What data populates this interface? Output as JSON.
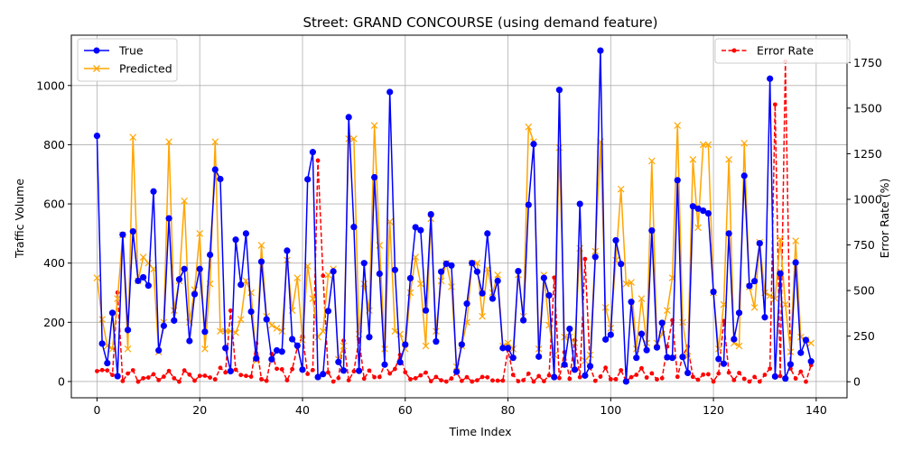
{
  "chart_data": {
    "type": "line",
    "title": "Street: GRAND CONCOURSE (using demand feature)",
    "xlabel": "Time Index",
    "ylabel": "Traffic Volume",
    "y2label": "Error Rate (%)",
    "xlim": [
      -5,
      146
    ],
    "ylim": [
      -55,
      1170
    ],
    "y2lim": [
      -88,
      1900
    ],
    "xticks": [
      0,
      20,
      40,
      60,
      80,
      100,
      120,
      140
    ],
    "yticks": [
      0,
      200,
      400,
      600,
      800,
      1000
    ],
    "y2ticks": [
      0,
      250,
      500,
      750,
      1000,
      1250,
      1500,
      1750
    ],
    "grid": true,
    "legend_left": "upper-left",
    "legend_right": "upper-right",
    "colors": {
      "true": "#0000ff",
      "predicted": "#ffa500",
      "error": "#ff0000"
    },
    "series": [
      {
        "name": "True",
        "axis": "left",
        "values": [
          830,
          128,
          62,
          232,
          18,
          496,
          174,
          507,
          340,
          352,
          324,
          642,
          105,
          188,
          551,
          206,
          345,
          380,
          137,
          295,
          380,
          168,
          428,
          716,
          684,
          113,
          35,
          479,
          327,
          500,
          236,
          78,
          405,
          210,
          75,
          105,
          101,
          442,
          143,
          121,
          40,
          683,
          775,
          15,
          25,
          238,
          372,
          66,
          37,
          893,
          522,
          36,
          400,
          150,
          690,
          364,
          57,
          978,
          377,
          65,
          125,
          349,
          521,
          511,
          240,
          565,
          135,
          371,
          398,
          392,
          33,
          125,
          263,
          400,
          371,
          298,
          500,
          280,
          340,
          113,
          113,
          80,
          373,
          207,
          597,
          802,
          84,
          350,
          291,
          15,
          985,
          57,
          178,
          40,
          600,
          20,
          52,
          421,
          1118,
          142,
          158,
          477,
          397,
          0,
          269,
          80,
          161,
          106,
          510,
          115,
          198,
          82,
          80,
          680,
          83,
          29,
          592,
          584,
          577,
          568,
          303,
          76,
          60,
          500,
          143,
          232,
          695,
          323,
          339,
          467,
          217,
          1023,
          17,
          365,
          10,
          58,
          402,
          97,
          140,
          68
        ]
      },
      {
        "name": "Predicted",
        "axis": "left",
        "values": [
          350,
          210,
          120,
          110,
          280,
          495,
          110,
          825,
          340,
          420,
          400,
          380,
          100,
          200,
          810,
          240,
          340,
          610,
          200,
          310,
          500,
          110,
          330,
          810,
          170,
          170,
          170,
          165,
          210,
          340,
          300,
          70,
          460,
          220,
          190,
          180,
          170,
          410,
          240,
          350,
          140,
          390,
          280,
          150,
          170,
          360,
          380,
          75,
          120,
          820,
          820,
          160,
          330,
          240,
          865,
          460,
          110,
          540,
          170,
          160,
          110,
          300,
          420,
          330,
          120,
          550,
          170,
          340,
          400,
          320,
          50,
          120,
          200,
          400,
          400,
          220,
          380,
          300,
          360,
          120,
          130,
          110,
          360,
          220,
          860,
          810,
          110,
          360,
          190,
          90,
          790,
          150,
          150,
          130,
          450,
          70,
          90,
          440,
          810,
          250,
          180,
          410,
          650,
          330,
          335,
          110,
          280,
          130,
          745,
          130,
          160,
          240,
          350,
          865,
          200,
          85,
          750,
          520,
          800,
          800,
          300,
          110,
          260,
          750,
          130,
          120,
          805,
          320,
          250,
          470,
          300,
          290,
          280,
          480,
          260,
          100,
          475,
          150,
          140,
          130
        ]
      },
      {
        "name": "Error Rate",
        "axis": "right",
        "values": [
          58,
          64,
          62,
          37,
          489,
          4,
          45,
          63,
          0,
          19,
          23,
          41,
          9,
          28,
          59,
          19,
          0,
          62,
          39,
          6,
          32,
          33,
          23,
          13,
          76,
          51,
          390,
          66,
          37,
          32,
          28,
          210,
          14,
          5,
          153,
          71,
          68,
          8,
          69,
          189,
          250,
          43,
          64,
          1213,
          581,
          51,
          1,
          20,
          225,
          8,
          57,
          233,
          17,
          61,
          25,
          26,
          94,
          45,
          70,
          147,
          52,
          14,
          19,
          35,
          50,
          3,
          26,
          8,
          1,
          18,
          50,
          5,
          25,
          1,
          8,
          26,
          24,
          7,
          6,
          6,
          175,
          38,
          3,
          8,
          44,
          1,
          31,
          3,
          35,
          571,
          20,
          162,
          16,
          227,
          25,
          673,
          78,
          5,
          28,
          77,
          14,
          14,
          63,
          3,
          25,
          38,
          74,
          23,
          46,
          13,
          19,
          193,
          337,
          27,
          141,
          193,
          27,
          11,
          39,
          41,
          1,
          45,
          333,
          50,
          9,
          48,
          16,
          1,
          26,
          1,
          38,
          72,
          1520,
          31,
          1755,
          72,
          18,
          55,
          0,
          91
        ]
      }
    ],
    "legend": {
      "true_label": "True",
      "predicted_label": "Predicted",
      "error_label": "Error Rate"
    }
  }
}
